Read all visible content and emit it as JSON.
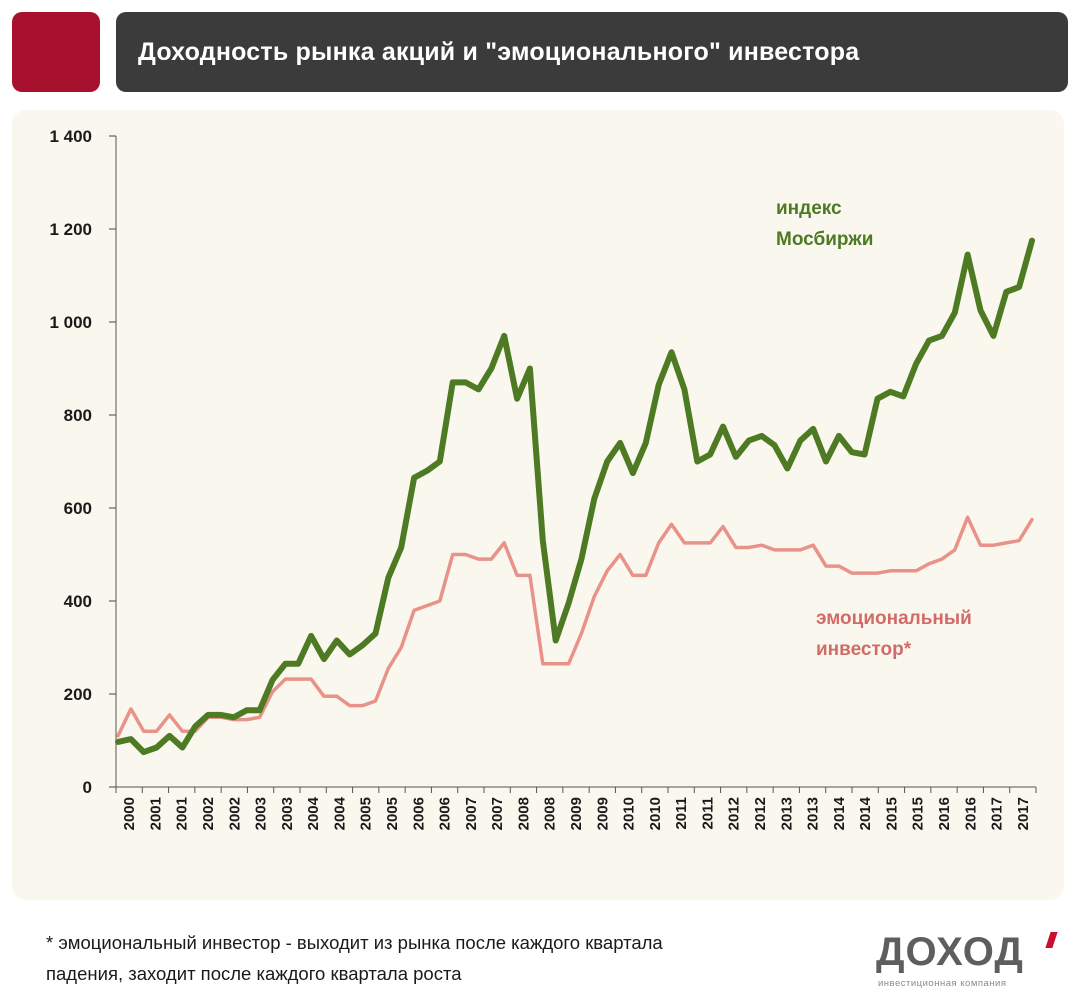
{
  "header": {
    "title": "Доходность рынка акций и \"эмоционального\" инвестора"
  },
  "colors": {
    "accent": "#a8112e",
    "title_bar": "#3b3b3b",
    "index_series": "#4d7a23",
    "emotional_series": "#e8928a",
    "panel_bg": "#faf8ee"
  },
  "chart_data": {
    "type": "line",
    "title": "Доходность рынка акций и \"эмоционального\" инвестора",
    "xlabel": "",
    "ylabel": "",
    "ylim": [
      0,
      1400
    ],
    "yticks": [
      0,
      200,
      400,
      600,
      800,
      1000,
      1200,
      1400
    ],
    "ytick_labels": [
      "0",
      "200",
      "400",
      "600",
      "800",
      "1 000",
      "1 200",
      "1 400"
    ],
    "x_tick_labels": [
      "2000",
      "2001",
      "2001",
      "2002",
      "2002",
      "2003",
      "2003",
      "2004",
      "2004",
      "2005",
      "2005",
      "2006",
      "2006",
      "2007",
      "2007",
      "2008",
      "2008",
      "2009",
      "2009",
      "2010",
      "2010",
      "2011",
      "2011",
      "2012",
      "2012",
      "2013",
      "2013",
      "2014",
      "2014",
      "2015",
      "2015",
      "2016",
      "2016",
      "2017",
      "2017"
    ],
    "grid": false,
    "legend": "inline labels",
    "series": [
      {
        "name": "индекс Мосбиржи",
        "label_lines": [
          "индекс",
          "Мосбиржи"
        ],
        "values": [
          97,
          103,
          75,
          85,
          110,
          85,
          130,
          155,
          155,
          150,
          165,
          165,
          230,
          265,
          265,
          325,
          275,
          315,
          285,
          305,
          330,
          450,
          515,
          665,
          680,
          700,
          870,
          870,
          855,
          900,
          970,
          835,
          900,
          530,
          315,
          395,
          490,
          620,
          700,
          740,
          675,
          740,
          865,
          935,
          855,
          700,
          715,
          775,
          710,
          745,
          755,
          735,
          685,
          745,
          770,
          700,
          755,
          720,
          715,
          835,
          850,
          840,
          910,
          960,
          970,
          1020,
          1145,
          1025,
          970,
          1065,
          1075,
          1175
        ]
      },
      {
        "name": "эмоциональный инвестор*",
        "label_lines": [
          "эмоциональный",
          "инвестор*"
        ],
        "values": [
          110,
          168,
          120,
          120,
          155,
          120,
          120,
          150,
          150,
          145,
          145,
          150,
          205,
          232,
          232,
          232,
          195,
          195,
          175,
          175,
          185,
          255,
          300,
          380,
          390,
          400,
          500,
          500,
          490,
          490,
          525,
          455,
          455,
          265,
          265,
          265,
          330,
          410,
          465,
          500,
          455,
          455,
          525,
          565,
          525,
          525,
          525,
          560,
          515,
          515,
          520,
          510,
          510,
          510,
          520,
          475,
          475,
          460,
          460,
          460,
          465,
          465,
          465,
          480,
          490,
          510,
          580,
          520,
          520,
          525,
          530,
          575
        ]
      }
    ]
  },
  "footnote": {
    "line1": "* эмоциональный инвестор - выходит из рынка после каждого квартала",
    "line2": "падения, заходит после каждого квартала роста"
  },
  "logo": {
    "word": "ДОХОД",
    "tagline": "инвестиционная компания"
  }
}
